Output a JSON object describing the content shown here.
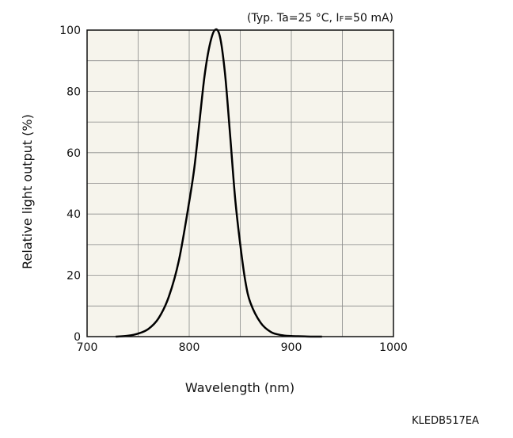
{
  "conditions": {
    "open": "(Typ. Ta=25 °C, ",
    "current_symbol": "I",
    "current_subscript": "F",
    "close": "=50 mA)"
  },
  "figure_code": "KLEDB517EA",
  "colors": {
    "plot_background": "#f6f4ec",
    "grid": "#8a8a8a",
    "curve": "#000000"
  },
  "chart_data": {
    "type": "line",
    "title": "",
    "xlabel": "Wavelength (nm)",
    "ylabel": "Relative light output (%)",
    "xlim": [
      700,
      1000
    ],
    "ylim": [
      0,
      100
    ],
    "x_ticks": [
      700,
      800,
      900,
      1000
    ],
    "y_ticks": [
      0,
      20,
      40,
      60,
      80,
      100
    ],
    "x_grid_step": 50,
    "y_grid_step": 10,
    "grid": true,
    "legend": "none",
    "series": [
      {
        "x": [
          728,
          740,
          750,
          760,
          770,
          780,
          790,
          800,
          805,
          810,
          815,
          820,
          825,
          830,
          835,
          840,
          845,
          850,
          855,
          860,
          870,
          880,
          890,
          900,
          910,
          920,
          930
        ],
        "y": [
          0,
          0.3,
          1,
          2.5,
          6,
          13,
          25,
          44,
          55,
          70,
          85,
          95,
          100,
          98,
          86,
          66,
          45,
          30,
          18,
          11,
          4.5,
          1.5,
          0.5,
          0.2,
          0.1,
          0,
          0
        ]
      }
    ]
  }
}
